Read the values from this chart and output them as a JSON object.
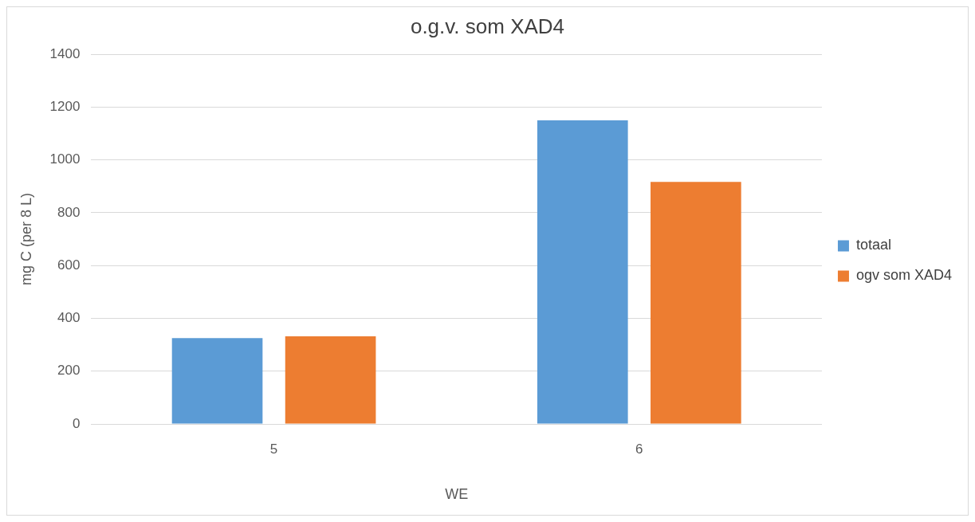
{
  "chart_data": {
    "type": "bar",
    "title": "o.g.v. som XAD4",
    "xlabel": "WE",
    "ylabel": "mg C (per 8 L)",
    "categories": [
      "5",
      "6"
    ],
    "series": [
      {
        "name": "totaal",
        "color": "#5b9bd5",
        "values": [
          325,
          1150
        ]
      },
      {
        "name": "ogv som XAD4",
        "color": "#ed7d31",
        "values": [
          332,
          917
        ]
      }
    ],
    "ylim": [
      0,
      1400
    ],
    "yticks": [
      0,
      200,
      400,
      600,
      800,
      1000,
      1200,
      1400
    ],
    "grid": "y",
    "legend": "right"
  }
}
